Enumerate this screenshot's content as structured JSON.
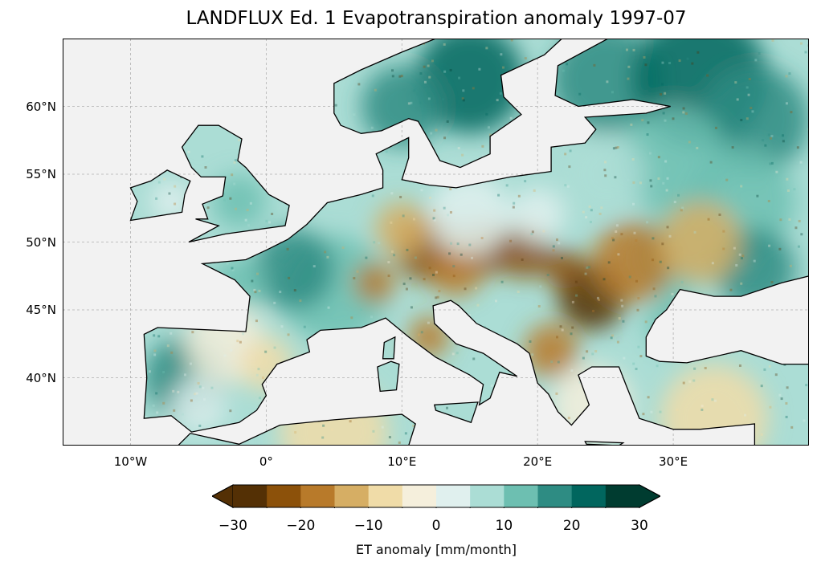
{
  "title": "LANDFLUX Ed. 1 Evapotranspiration anomaly 1997-07",
  "map": {
    "projection": "PlateCarree",
    "extent_lon": [
      -15,
      40
    ],
    "extent_lat": [
      35,
      65
    ],
    "ocean_color": "#f2f2f2",
    "coastline_color": "#000000",
    "gridlines": "dashed"
  },
  "x_ticks": [
    {
      "lon": -10,
      "label": "10°W"
    },
    {
      "lon": 0,
      "label": "0°"
    },
    {
      "lon": 10,
      "label": "10°E"
    },
    {
      "lon": 20,
      "label": "20°E"
    },
    {
      "lon": 30,
      "label": "30°E"
    }
  ],
  "y_ticks": [
    {
      "lat": 60,
      "label": "60°N"
    },
    {
      "lat": 55,
      "label": "55°N"
    },
    {
      "lat": 50,
      "label": "50°N"
    },
    {
      "lat": 45,
      "label": "45°N"
    },
    {
      "lat": 40,
      "label": "40°N"
    }
  ],
  "colorbar": {
    "label": "ET anomaly [mm/month]",
    "range": [
      -30,
      30
    ],
    "extend": "both",
    "ticks": [
      "−30",
      "−20",
      "−10",
      "0",
      "10",
      "20",
      "30"
    ],
    "tick_values": [
      -30,
      -20,
      -10,
      0,
      10,
      20,
      30
    ],
    "colors": [
      "#543005",
      "#8c510a",
      "#b87a2a",
      "#d6ae64",
      "#f0dca8",
      "#f5efdc",
      "#e0f0ee",
      "#abddd5",
      "#6dbfb1",
      "#2e8c83",
      "#01665e",
      "#003c30"
    ]
  }
}
